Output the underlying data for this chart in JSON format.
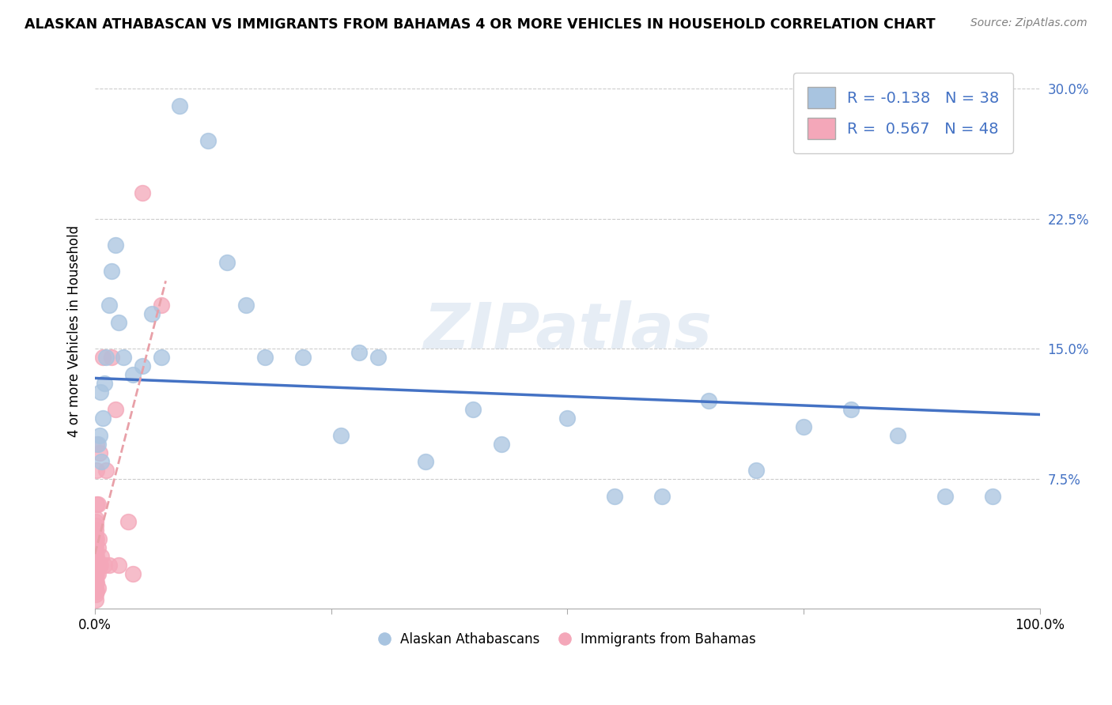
{
  "title": "ALASKAN ATHABASCAN VS IMMIGRANTS FROM BAHAMAS 4 OR MORE VEHICLES IN HOUSEHOLD CORRELATION CHART",
  "source": "Source: ZipAtlas.com",
  "ylabel": "4 or more Vehicles in Household",
  "xlim": [
    0,
    1.0
  ],
  "ylim": [
    0,
    0.32
  ],
  "xticks": [
    0.0,
    0.25,
    0.5,
    0.75,
    1.0
  ],
  "xtick_labels": [
    "0.0%",
    "",
    "",
    "",
    "100.0%"
  ],
  "yticks": [
    0.075,
    0.15,
    0.225,
    0.3
  ],
  "ytick_labels": [
    "7.5%",
    "15.0%",
    "22.5%",
    "30.0%"
  ],
  "legend_labels": [
    "Alaskan Athabascans",
    "Immigrants from Bahamas"
  ],
  "r_blue": -0.138,
  "n_blue": 38,
  "r_pink": 0.567,
  "n_pink": 48,
  "blue_color": "#a8c4e0",
  "pink_color": "#f4a7b9",
  "blue_line_color": "#4472C4",
  "pink_line_color": "#e8a0a8",
  "watermark": "ZIPatlas",
  "blue_scatter_x": [
    0.003,
    0.005,
    0.006,
    0.007,
    0.008,
    0.01,
    0.012,
    0.015,
    0.018,
    0.022,
    0.025,
    0.03,
    0.04,
    0.05,
    0.06,
    0.07,
    0.09,
    0.12,
    0.14,
    0.16,
    0.18,
    0.22,
    0.26,
    0.3,
    0.35,
    0.4,
    0.5,
    0.55,
    0.6,
    0.65,
    0.7,
    0.8,
    0.85,
    0.9,
    0.95,
    0.28,
    0.43,
    0.75
  ],
  "blue_scatter_y": [
    0.095,
    0.1,
    0.125,
    0.085,
    0.11,
    0.13,
    0.145,
    0.175,
    0.195,
    0.21,
    0.165,
    0.145,
    0.135,
    0.14,
    0.17,
    0.145,
    0.29,
    0.27,
    0.2,
    0.175,
    0.145,
    0.145,
    0.1,
    0.145,
    0.085,
    0.115,
    0.11,
    0.065,
    0.065,
    0.12,
    0.08,
    0.115,
    0.1,
    0.065,
    0.065,
    0.148,
    0.095,
    0.105
  ],
  "pink_scatter_x": [
    0.001,
    0.001,
    0.001,
    0.001,
    0.001,
    0.001,
    0.001,
    0.001,
    0.001,
    0.001,
    0.001,
    0.001,
    0.001,
    0.001,
    0.001,
    0.001,
    0.001,
    0.001,
    0.001,
    0.001,
    0.002,
    0.002,
    0.002,
    0.002,
    0.002,
    0.002,
    0.002,
    0.002,
    0.003,
    0.003,
    0.003,
    0.003,
    0.004,
    0.004,
    0.005,
    0.006,
    0.007,
    0.008,
    0.01,
    0.012,
    0.015,
    0.018,
    0.022,
    0.025,
    0.035,
    0.04,
    0.05,
    0.07
  ],
  "pink_scatter_y": [
    0.005,
    0.008,
    0.01,
    0.012,
    0.015,
    0.018,
    0.02,
    0.022,
    0.025,
    0.028,
    0.03,
    0.032,
    0.035,
    0.038,
    0.04,
    0.042,
    0.045,
    0.048,
    0.05,
    0.052,
    0.01,
    0.015,
    0.02,
    0.03,
    0.04,
    0.06,
    0.08,
    0.095,
    0.012,
    0.02,
    0.035,
    0.06,
    0.025,
    0.04,
    0.09,
    0.025,
    0.03,
    0.145,
    0.025,
    0.08,
    0.025,
    0.145,
    0.115,
    0.025,
    0.05,
    0.02,
    0.24,
    0.175
  ],
  "blue_line_x": [
    0.0,
    1.0
  ],
  "blue_line_y_start": 0.133,
  "blue_line_y_end": 0.112,
  "pink_line_x_end": 0.075
}
